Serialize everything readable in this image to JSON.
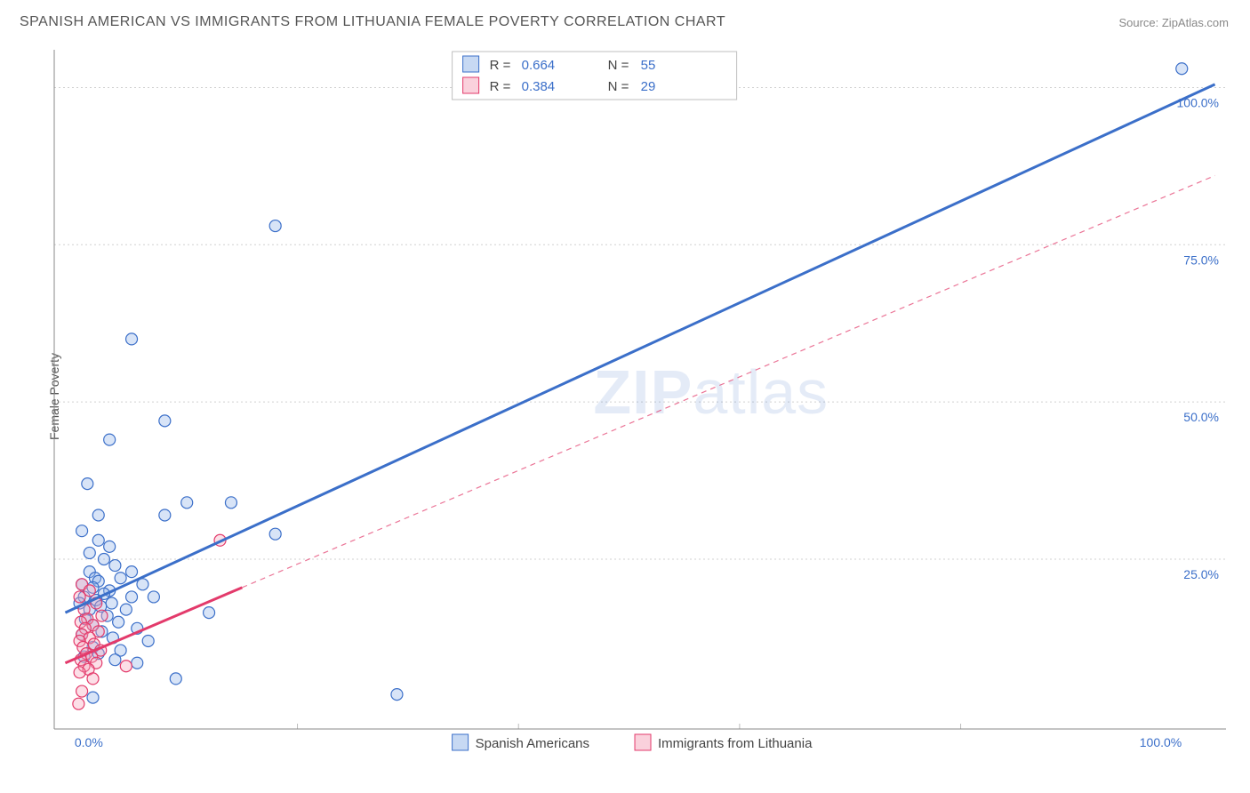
{
  "title": "SPANISH AMERICAN VS IMMIGRANTS FROM LITHUANIA FEMALE POVERTY CORRELATION CHART",
  "source_label": "Source: ",
  "source_name": "ZipAtlas.com",
  "ylabel": "Female Poverty",
  "watermark": {
    "part1": "ZIP",
    "part2": "atlas"
  },
  "chart": {
    "type": "scatter",
    "xlim": [
      -2,
      104
    ],
    "ylim": [
      -2,
      106
    ],
    "x_ticks": [
      0,
      100
    ],
    "x_tick_labels": [
      "0.0%",
      "100.0%"
    ],
    "x_minor_lines": [
      20,
      40,
      60,
      80
    ],
    "y_ticks": [
      25,
      50,
      75,
      100
    ],
    "y_tick_labels": [
      "25.0%",
      "50.0%",
      "75.0%",
      "100.0%"
    ],
    "y_minor_lines": [
      0
    ],
    "grid_color": "#d0d0d0",
    "axis_color": "#888888",
    "background_color": "#ffffff",
    "tick_label_color": "#3b6fc9",
    "marker_radius": 6.5,
    "label_fontsize": 14
  },
  "series": [
    {
      "id": "spanish",
      "label": "Spanish Americans",
      "color_stroke": "#3b6fc9",
      "color_fill": "#8fb3e8",
      "R": "0.664",
      "N": "55",
      "trend": {
        "x1": -1,
        "y1": 16.5,
        "x2": 103,
        "y2": 100.5,
        "style": "solid"
      },
      "trend_ext": null,
      "points": [
        [
          100,
          103
        ],
        [
          18,
          78
        ],
        [
          5,
          60
        ],
        [
          8,
          47
        ],
        [
          3,
          44
        ],
        [
          1,
          37
        ],
        [
          10,
          34
        ],
        [
          14,
          34
        ],
        [
          2,
          32
        ],
        [
          8,
          32
        ],
        [
          0.5,
          29.5
        ],
        [
          18,
          29
        ],
        [
          2,
          28
        ],
        [
          3,
          27
        ],
        [
          1.2,
          26
        ],
        [
          2.5,
          25
        ],
        [
          3.5,
          24
        ],
        [
          5,
          23
        ],
        [
          1.2,
          23
        ],
        [
          1.7,
          22
        ],
        [
          4,
          22
        ],
        [
          2,
          21.5
        ],
        [
          6,
          21
        ],
        [
          0.5,
          21
        ],
        [
          1.5,
          20.5
        ],
        [
          3,
          20
        ],
        [
          2.5,
          19.5
        ],
        [
          5,
          19
        ],
        [
          7,
          19
        ],
        [
          0.7,
          19
        ],
        [
          1.8,
          18.5
        ],
        [
          3.2,
          18
        ],
        [
          0.3,
          18
        ],
        [
          2.2,
          17.5
        ],
        [
          4.5,
          17
        ],
        [
          1.2,
          17
        ],
        [
          12,
          16.5
        ],
        [
          2.8,
          16
        ],
        [
          0.8,
          15.5
        ],
        [
          3.8,
          15
        ],
        [
          1.5,
          14.5
        ],
        [
          5.5,
          14
        ],
        [
          2.3,
          13.5
        ],
        [
          0.5,
          13
        ],
        [
          3.3,
          12.5
        ],
        [
          6.5,
          12
        ],
        [
          1.5,
          11
        ],
        [
          4,
          10.5
        ],
        [
          2,
          10
        ],
        [
          0.7,
          9.5
        ],
        [
          3.5,
          9
        ],
        [
          5.5,
          8.5
        ],
        [
          9,
          6
        ],
        [
          29,
          3.5
        ],
        [
          1.5,
          3
        ]
      ]
    },
    {
      "id": "lithuania",
      "label": "Immigrants from Lithuania",
      "color_stroke": "#e33a6b",
      "color_fill": "#f5a3ba",
      "R": "0.384",
      "N": "29",
      "trend": {
        "x1": -1,
        "y1": 8.5,
        "x2": 15,
        "y2": 20.5,
        "style": "solid"
      },
      "trend_ext": {
        "x1": 15,
        "y1": 20.5,
        "x2": 103,
        "y2": 86,
        "style": "dashed"
      },
      "points": [
        [
          13,
          28
        ],
        [
          0.5,
          21
        ],
        [
          1.2,
          20
        ],
        [
          0.3,
          19
        ],
        [
          1.8,
          18
        ],
        [
          0.7,
          17
        ],
        [
          2.3,
          16
        ],
        [
          1,
          15.5
        ],
        [
          0.4,
          15
        ],
        [
          1.5,
          14.5
        ],
        [
          0.8,
          14
        ],
        [
          2,
          13.5
        ],
        [
          0.5,
          13
        ],
        [
          1.2,
          12.5
        ],
        [
          0.3,
          12
        ],
        [
          1.6,
          11.5
        ],
        [
          0.6,
          11
        ],
        [
          2.2,
          10.5
        ],
        [
          0.9,
          10
        ],
        [
          1.4,
          9.5
        ],
        [
          0.4,
          9
        ],
        [
          1.8,
          8.5
        ],
        [
          0.7,
          8
        ],
        [
          4.5,
          8
        ],
        [
          1.1,
          7.5
        ],
        [
          0.3,
          7
        ],
        [
          1.5,
          6
        ],
        [
          0.5,
          4
        ],
        [
          0.2,
          2
        ]
      ]
    }
  ],
  "legend_top": {
    "R_label": "R =",
    "N_label": "N ="
  },
  "legend_bottom": {
    "items": [
      "Spanish Americans",
      "Immigrants from Lithuania"
    ]
  }
}
